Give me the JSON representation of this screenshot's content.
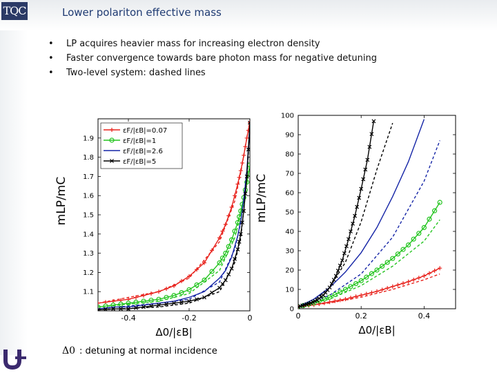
{
  "header": {
    "logo": "TQC",
    "title": "Lower polariton effective mass"
  },
  "bullets": [
    "LP acquires heavier mass for increasing electron density",
    "Faster convergence towards bare photon mass for negative detuning",
    "Two-level system: dashed lines"
  ],
  "bullet_marker": "•",
  "caption": {
    "symbol": "Δ0",
    "text": ": detuning at normal incidence"
  },
  "colors": {
    "red": "#e8221c",
    "green": "#22c41e",
    "blue": "#1424a6",
    "black": "#000000",
    "title": "#1f3b73"
  },
  "chart_data": [
    {
      "type": "line",
      "panel": "left",
      "ylabel": "mLP/mC",
      "xlabel": "Δ0/|εB|",
      "xlim": [
        -0.5,
        0.0
      ],
      "ylim": [
        1.0,
        2.0
      ],
      "xticks": [
        -0.4,
        -0.2,
        0
      ],
      "xtick_labels": [
        "-0.4",
        "-0.2",
        "0"
      ],
      "yticks": [
        1.1,
        1.2,
        1.3,
        1.4,
        1.5,
        1.6,
        1.7,
        1.8,
        1.9
      ],
      "ytick_labels": [
        "1.1",
        "1.2",
        "1.3",
        "1.4",
        "1.5",
        "1.6",
        "1.7",
        "1.8",
        "1.9"
      ],
      "legend": [
        "εF/|εB|=0.07",
        "εF/|εB|=1",
        "εF/|εB|=2.6",
        "εF/|εB|=5"
      ],
      "legend_position": "top-left",
      "series": [
        {
          "name": "εF/|εB|=0.07",
          "color": "red",
          "marker": "+",
          "x": [
            -0.5,
            -0.45,
            -0.4,
            -0.35,
            -0.3,
            -0.25,
            -0.2,
            -0.15,
            -0.1,
            -0.08,
            -0.06,
            -0.04,
            -0.03,
            -0.02,
            -0.01,
            0.0
          ],
          "y": [
            1.04,
            1.05,
            1.06,
            1.08,
            1.1,
            1.13,
            1.18,
            1.25,
            1.38,
            1.45,
            1.54,
            1.66,
            1.73,
            1.81,
            1.9,
            1.98
          ]
        },
        {
          "name": "εF/|εB|=1",
          "color": "green",
          "marker": "o",
          "x": [
            -0.5,
            -0.45,
            -0.4,
            -0.35,
            -0.3,
            -0.25,
            -0.2,
            -0.15,
            -0.1,
            -0.08,
            -0.06,
            -0.04,
            -0.03,
            -0.02,
            -0.01,
            0.0
          ],
          "y": [
            1.02,
            1.03,
            1.04,
            1.05,
            1.06,
            1.08,
            1.11,
            1.16,
            1.25,
            1.3,
            1.37,
            1.46,
            1.52,
            1.59,
            1.67,
            1.76
          ]
        },
        {
          "name": "εF/|εB|=2.6",
          "color": "blue",
          "marker": "",
          "x": [
            -0.5,
            -0.45,
            -0.4,
            -0.35,
            -0.3,
            -0.25,
            -0.2,
            -0.15,
            -0.1,
            -0.08,
            -0.06,
            -0.04,
            -0.03,
            -0.02,
            -0.01,
            0.0
          ],
          "y": [
            1.01,
            1.02,
            1.02,
            1.03,
            1.04,
            1.05,
            1.07,
            1.1,
            1.17,
            1.21,
            1.28,
            1.39,
            1.47,
            1.58,
            1.73,
            1.96
          ]
        },
        {
          "name": "εF/|εB|=5",
          "color": "black",
          "marker": "x",
          "x": [
            -0.5,
            -0.45,
            -0.4,
            -0.35,
            -0.3,
            -0.25,
            -0.2,
            -0.15,
            -0.1,
            -0.08,
            -0.06,
            -0.04,
            -0.03,
            -0.02,
            -0.01,
            0.0
          ],
          "y": [
            1.005,
            1.01,
            1.01,
            1.02,
            1.03,
            1.04,
            1.05,
            1.07,
            1.12,
            1.16,
            1.22,
            1.32,
            1.4,
            1.52,
            1.7,
            1.98
          ]
        }
      ],
      "dashed": [
        {
          "color": "red",
          "x": [
            -0.5,
            -0.3,
            -0.2,
            -0.1,
            -0.05,
            -0.03,
            -0.01,
            0.0
          ],
          "y": [
            1.04,
            1.1,
            1.17,
            1.36,
            1.57,
            1.72,
            1.9,
            1.99
          ]
        },
        {
          "color": "green",
          "x": [
            -0.5,
            -0.3,
            -0.2,
            -0.1,
            -0.05,
            -0.03,
            -0.01,
            0.0
          ],
          "y": [
            1.02,
            1.05,
            1.09,
            1.21,
            1.38,
            1.5,
            1.66,
            1.76
          ]
        },
        {
          "color": "blue",
          "x": [
            -0.5,
            -0.3,
            -0.2,
            -0.1,
            -0.05,
            -0.03,
            -0.01,
            0.0
          ],
          "y": [
            1.01,
            1.04,
            1.06,
            1.15,
            1.32,
            1.46,
            1.72,
            1.95
          ]
        },
        {
          "color": "black",
          "x": [
            -0.5,
            -0.3,
            -0.2,
            -0.1,
            -0.05,
            -0.03,
            -0.01,
            0.0
          ],
          "y": [
            1.005,
            1.02,
            1.04,
            1.1,
            1.25,
            1.38,
            1.68,
            1.97
          ]
        }
      ]
    },
    {
      "type": "line",
      "panel": "right",
      "ylabel": "mLP/mC",
      "xlabel": "Δ0/|εB|",
      "xlim": [
        0.0,
        0.5
      ],
      "ylim": [
        0,
        100
      ],
      "xticks": [
        0,
        0.2,
        0.4
      ],
      "xtick_labels": [
        "0",
        "0.2",
        "0.4"
      ],
      "yticks": [
        0,
        10,
        20,
        30,
        40,
        50,
        60,
        70,
        80,
        90,
        100
      ],
      "ytick_labels": [
        "0",
        "10",
        "20",
        "30",
        "40",
        "50",
        "60",
        "70",
        "80",
        "90",
        "100"
      ],
      "series": [
        {
          "name": "εF/|εB|=0.07",
          "color": "red",
          "marker": "+",
          "x": [
            0,
            0.05,
            0.1,
            0.15,
            0.2,
            0.25,
            0.3,
            0.35,
            0.4,
            0.45
          ],
          "y": [
            1,
            2,
            3.5,
            5,
            7,
            9,
            11.5,
            14,
            17,
            21
          ]
        },
        {
          "name": "εF/|εB|=1",
          "color": "green",
          "marker": "o",
          "x": [
            0,
            0.05,
            0.1,
            0.15,
            0.2,
            0.25,
            0.3,
            0.35,
            0.4,
            0.45
          ],
          "y": [
            1,
            3,
            6,
            10,
            14.5,
            20,
            26,
            33,
            42,
            55
          ]
        },
        {
          "name": "εF/|εB|=2.6",
          "color": "blue",
          "marker": "",
          "x": [
            0,
            0.05,
            0.1,
            0.15,
            0.2,
            0.25,
            0.3,
            0.35,
            0.4
          ],
          "y": [
            1,
            5,
            11,
            19,
            29,
            42,
            58,
            76,
            98
          ]
        },
        {
          "name": "εF/|εB|=5",
          "color": "black",
          "marker": "x",
          "x": [
            0,
            0.02,
            0.04,
            0.06,
            0.08,
            0.1,
            0.12,
            0.14,
            0.16,
            0.18,
            0.2,
            0.22,
            0.24
          ],
          "y": [
            1,
            2,
            3,
            4.5,
            7,
            11,
            17,
            25,
            36,
            48,
            62,
            77,
            97
          ]
        }
      ],
      "dashed": [
        {
          "color": "red",
          "x": [
            0,
            0.1,
            0.2,
            0.3,
            0.4,
            0.45
          ],
          "y": [
            1,
            3,
            6,
            10,
            15,
            18
          ]
        },
        {
          "color": "green",
          "x": [
            0,
            0.1,
            0.2,
            0.3,
            0.4,
            0.45
          ],
          "y": [
            1,
            5,
            12,
            22,
            35,
            46
          ]
        },
        {
          "color": "blue",
          "x": [
            0,
            0.1,
            0.2,
            0.3,
            0.4,
            0.45
          ],
          "y": [
            1,
            7,
            18,
            37,
            66,
            87
          ]
        },
        {
          "color": "black",
          "x": [
            0,
            0.05,
            0.1,
            0.15,
            0.2,
            0.25,
            0.3
          ],
          "y": [
            1,
            4,
            11,
            24,
            45,
            72,
            96
          ]
        }
      ]
    }
  ]
}
